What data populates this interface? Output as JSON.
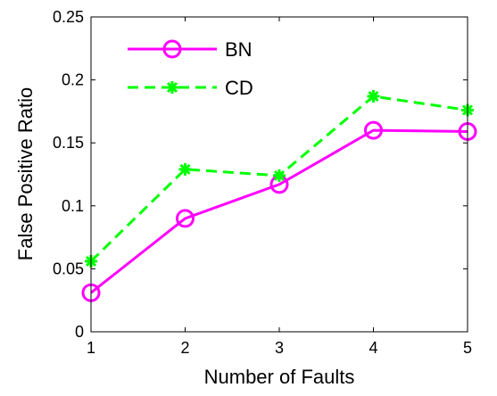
{
  "chart_data": {
    "type": "line",
    "title": "",
    "xlabel": "Number of Faults",
    "ylabel": "False Positive Ratio",
    "x": [
      1,
      2,
      3,
      4,
      5
    ],
    "xlim": [
      1,
      5
    ],
    "ylim": [
      0,
      0.25
    ],
    "xticks": [
      "1",
      "2",
      "3",
      "4",
      "5"
    ],
    "yticks": [
      "0",
      "0.05",
      "0.1",
      "0.15",
      "0.2",
      "0.25"
    ],
    "grid": false,
    "legend_position": "top-left",
    "series": [
      {
        "name": "BN",
        "values": [
          0.031,
          0.09,
          0.117,
          0.16,
          0.159
        ],
        "color": "#ff00ff",
        "line_style": "solid",
        "marker": "circle"
      },
      {
        "name": "CD",
        "values": [
          0.056,
          0.129,
          0.124,
          0.187,
          0.176
        ],
        "color": "#00ff00",
        "line_style": "dashed",
        "marker": "star"
      }
    ]
  }
}
